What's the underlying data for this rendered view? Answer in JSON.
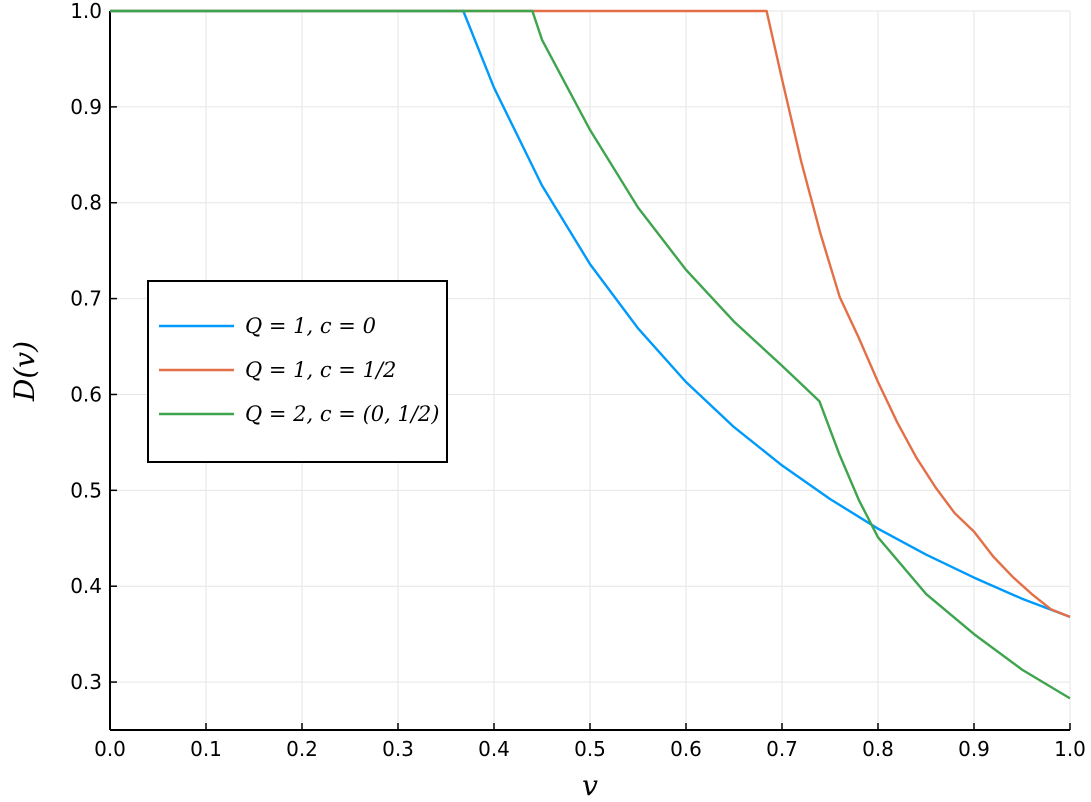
{
  "chart_data": {
    "type": "line",
    "xlabel": "v",
    "ylabel": "D(v)",
    "xlim": [
      0,
      1
    ],
    "ylim": [
      0.25,
      1.0
    ],
    "xticks": [
      0.0,
      0.1,
      0.2,
      0.3,
      0.4,
      0.5,
      0.6,
      0.7,
      0.8,
      0.9,
      1.0
    ],
    "yticks": [
      0.3,
      0.4,
      0.5,
      0.6,
      0.7,
      0.8,
      0.9,
      1.0
    ],
    "xtick_labels": [
      "0.0",
      "0.1",
      "0.2",
      "0.3",
      "0.4",
      "0.5",
      "0.6",
      "0.7",
      "0.8",
      "0.9",
      "1.0"
    ],
    "ytick_labels": [
      "0.3",
      "0.4",
      "0.5",
      "0.6",
      "0.7",
      "0.8",
      "0.9",
      "1.0"
    ],
    "grid": true,
    "legend_position": "middle-left",
    "series": [
      {
        "name": "Q = 1, c = 0",
        "color": "#009afa",
        "x": [
          0.0,
          0.368,
          0.4,
          0.45,
          0.5,
          0.55,
          0.6,
          0.65,
          0.7,
          0.75,
          0.8,
          0.85,
          0.9,
          0.95,
          1.0
        ],
        "y": [
          1.0,
          1.0,
          0.92,
          0.818,
          0.736,
          0.669,
          0.613,
          0.566,
          0.526,
          0.491,
          0.46,
          0.433,
          0.409,
          0.387,
          0.368
        ]
      },
      {
        "name": "Q = 1, c = 1/2",
        "color": "#e36f47",
        "x": [
          0.0,
          0.684,
          0.7,
          0.72,
          0.74,
          0.76,
          0.78,
          0.8,
          0.82,
          0.84,
          0.86,
          0.88,
          0.9,
          0.92,
          0.94,
          0.96,
          0.98,
          1.0
        ],
        "y": [
          1.0,
          1.0,
          0.929,
          0.843,
          0.768,
          0.702,
          0.659,
          0.613,
          0.571,
          0.534,
          0.503,
          0.476,
          0.457,
          0.431,
          0.41,
          0.392,
          0.376,
          0.368
        ]
      },
      {
        "name": "Q = 2, c = (0, 1/2)",
        "color": "#3ea44e",
        "x": [
          0.0,
          0.44,
          0.45,
          0.5,
          0.55,
          0.6,
          0.65,
          0.7,
          0.739,
          0.76,
          0.78,
          0.8,
          0.85,
          0.9,
          0.95,
          1.0
        ],
        "y": [
          1.0,
          1.0,
          0.97,
          0.876,
          0.795,
          0.73,
          0.676,
          0.63,
          0.593,
          0.537,
          0.49,
          0.451,
          0.392,
          0.35,
          0.313,
          0.283
        ]
      }
    ]
  }
}
